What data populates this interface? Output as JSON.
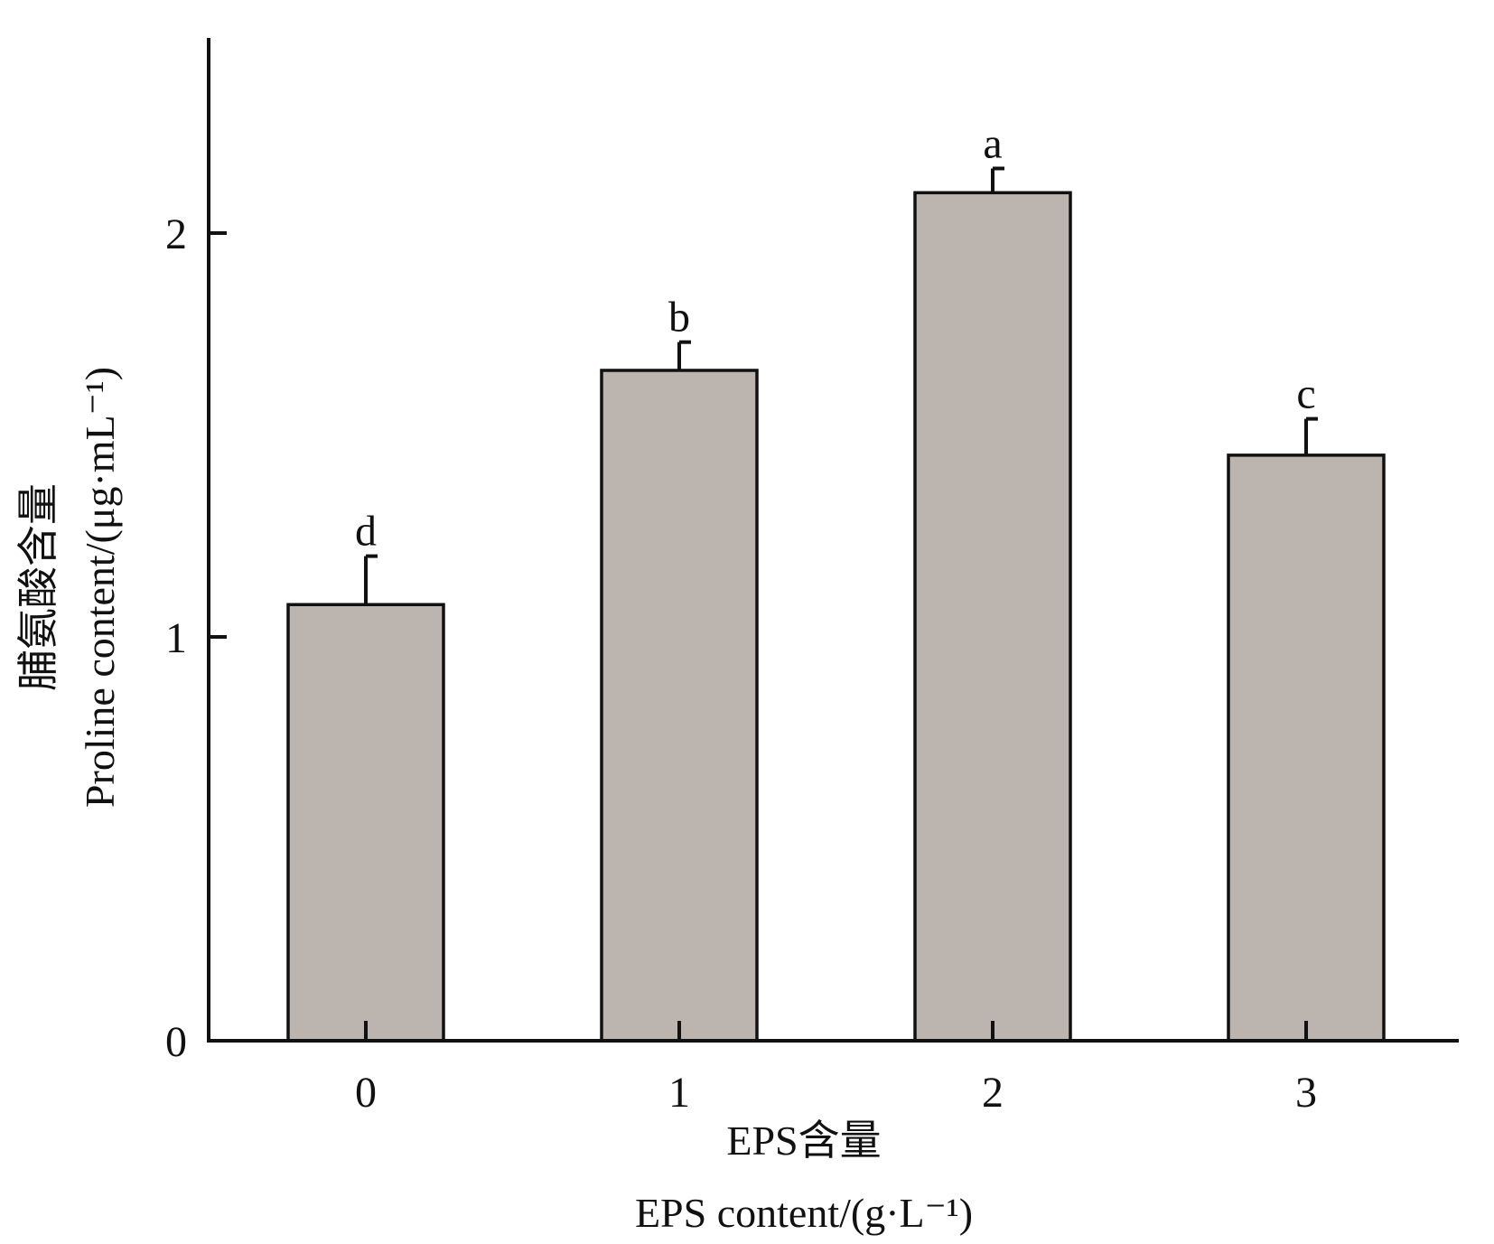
{
  "chart_data": {
    "type": "bar",
    "categories": [
      "0",
      "1",
      "2",
      "3"
    ],
    "values": [
      1.08,
      1.66,
      2.1,
      1.45
    ],
    "errors": [
      0.12,
      0.07,
      0.06,
      0.09
    ],
    "significance_letters": [
      "d",
      "b",
      "a",
      "c"
    ],
    "ylim": [
      0,
      2.5
    ],
    "yticks": [
      "0",
      "1",
      "2"
    ],
    "ylabel_zh": "脯氨酸含量",
    "ylabel_en": "Proline content/(μg·mL⁻¹)",
    "xlabel_zh": "EPS含量",
    "xlabel_en": "EPS content/(g·L⁻¹)",
    "bar_color": "#bcb4ae",
    "edge_color": "#111111",
    "grid": false,
    "legend": "none"
  }
}
